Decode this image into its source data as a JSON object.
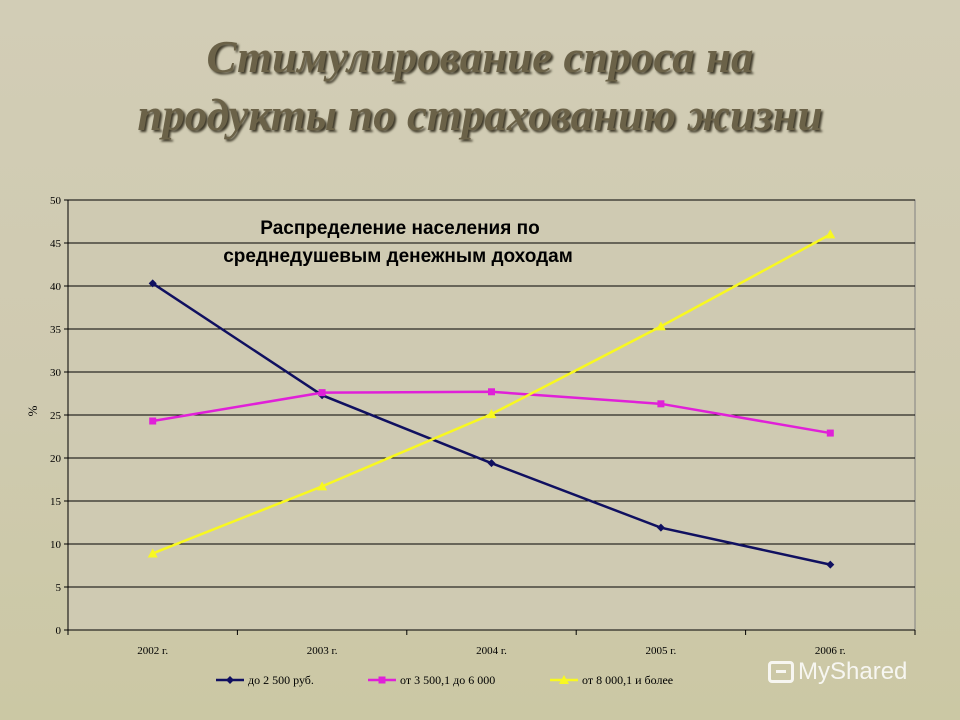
{
  "slide": {
    "title_line1": "Стимулирование спроса на",
    "title_line2": "продукты по страхованию жизни"
  },
  "watermark": {
    "text": "MyShared"
  },
  "colors": {
    "series1": "#101060",
    "series2": "#e020d8",
    "series3": "#f8f820",
    "grid": "#000000",
    "plot_background": "#cfcab2"
  },
  "chart_data": {
    "type": "line",
    "title_line1": "Распределение населения по",
    "title_line2": "среднедушевым денежным доходам",
    "ylabel": "%",
    "xlabel": "",
    "categories": [
      "2002 г.",
      "2003 г.",
      "2004 г.",
      "2005 г.",
      "2006 г."
    ],
    "ylim": [
      0,
      50
    ],
    "yticks": [
      0,
      5,
      10,
      15,
      20,
      25,
      30,
      35,
      40,
      45,
      50
    ],
    "grid": "horizontal",
    "legend_position": "bottom",
    "series": [
      {
        "name": "до 2 500 руб.",
        "marker": "diamond",
        "values": [
          40.3,
          27.3,
          19.4,
          11.9,
          7.6
        ]
      },
      {
        "name": "от 3 500,1 до 6 000",
        "marker": "square",
        "values": [
          24.3,
          27.6,
          27.7,
          26.3,
          22.9
        ]
      },
      {
        "name": "от 8 000,1 и более",
        "marker": "triangle",
        "values": [
          8.9,
          16.7,
          25.1,
          35.3,
          46.0
        ]
      }
    ]
  }
}
